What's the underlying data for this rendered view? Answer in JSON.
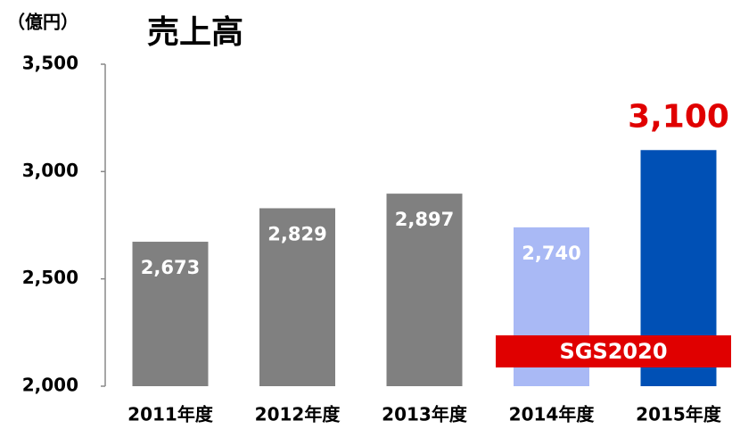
{
  "chart_data": {
    "type": "bar",
    "title": "売上高",
    "unit_label": "（億円）",
    "categories": [
      "2011年度",
      "2012年度",
      "2013年度",
      "2014年度",
      "2015年度"
    ],
    "values": [
      2673,
      2829,
      2897,
      2740,
      3100
    ],
    "value_labels": [
      "2,673",
      "2,829",
      "2,897",
      "2,740",
      "3,100"
    ],
    "colors": [
      "#808080",
      "#808080",
      "#808080",
      "#a9b9f5",
      "#0050b5"
    ],
    "ylim": [
      2000,
      3500
    ],
    "yticks": [
      {
        "value": 2000,
        "label": "2,000"
      },
      {
        "value": 2500,
        "label": "2,500"
      },
      {
        "value": 3000,
        "label": "3,000"
      },
      {
        "value": 3500,
        "label": "3,500"
      }
    ],
    "annotations": [
      "SGS2020"
    ]
  }
}
